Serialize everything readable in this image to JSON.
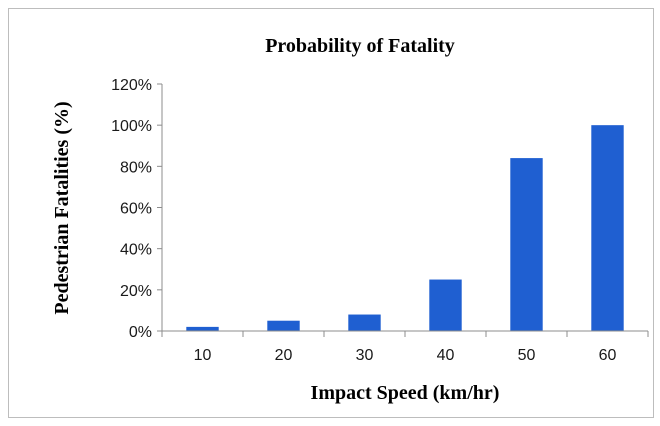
{
  "chart_data": {
    "type": "bar",
    "title": "Probability of Fatality",
    "xlabel": "Impact Speed (km/hr)",
    "ylabel": "Pedestrian Fatalities (%)",
    "categories": [
      "10",
      "20",
      "30",
      "40",
      "50",
      "60"
    ],
    "values": [
      2,
      5,
      8,
      25,
      84,
      100
    ],
    "ylim": [
      0,
      120
    ],
    "yticks": [
      "0%",
      "20%",
      "40%",
      "60%",
      "80%",
      "100%",
      "120%"
    ],
    "bar_color": "#1f5fd1",
    "grid": false,
    "legend": "none"
  }
}
